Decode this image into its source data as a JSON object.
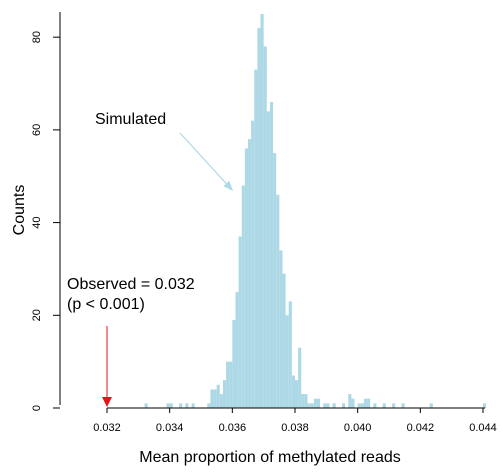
{
  "chart_data": {
    "type": "bar",
    "title": "",
    "xlabel": "Mean proportion of methylated reads",
    "ylabel": "Counts",
    "xlim": [
      0.03075,
      0.0445
    ],
    "ylim": [
      0,
      85
    ],
    "x_ticks": [
      0.032,
      0.034,
      0.036,
      0.038,
      0.04,
      0.042,
      0.044
    ],
    "x_tick_labels": [
      "0.032",
      "0.034",
      "0.036",
      "0.038",
      "0.040",
      "0.042",
      "0.044"
    ],
    "y_ticks": [
      0,
      20,
      40,
      60,
      80
    ],
    "y_tick_labels": [
      "0",
      "20",
      "40",
      "60",
      "80"
    ],
    "bar_color": "#add8e6",
    "bin_width": 0.0001,
    "series": [
      {
        "bins": [
          [
            0.0332,
            1
          ],
          [
            0.0339,
            1
          ],
          [
            0.034,
            1
          ],
          [
            0.0343,
            1
          ],
          [
            0.0345,
            1
          ],
          [
            0.0347,
            1
          ],
          [
            0.0352,
            1
          ],
          [
            0.0353,
            4
          ],
          [
            0.0354,
            4
          ],
          [
            0.0355,
            5
          ],
          [
            0.0356,
            3
          ],
          [
            0.0357,
            6
          ],
          [
            0.0358,
            10
          ],
          [
            0.0359,
            10
          ],
          [
            0.036,
            19
          ],
          [
            0.0361,
            25
          ],
          [
            0.0362,
            37
          ],
          [
            0.0363,
            48
          ],
          [
            0.0364,
            56
          ],
          [
            0.0365,
            58
          ],
          [
            0.0366,
            62
          ],
          [
            0.0367,
            73
          ],
          [
            0.0368,
            82
          ],
          [
            0.0369,
            85
          ],
          [
            0.037,
            78
          ],
          [
            0.0371,
            64
          ],
          [
            0.0372,
            66
          ],
          [
            0.0373,
            55
          ],
          [
            0.0374,
            46
          ],
          [
            0.0375,
            34
          ],
          [
            0.0376,
            29
          ],
          [
            0.0377,
            20
          ],
          [
            0.0378,
            23
          ],
          [
            0.0379,
            7
          ],
          [
            0.038,
            6
          ],
          [
            0.0381,
            13
          ],
          [
            0.0382,
            3
          ],
          [
            0.0383,
            3
          ],
          [
            0.0384,
            1
          ],
          [
            0.0385,
            1
          ],
          [
            0.0386,
            2
          ],
          [
            0.0387,
            2
          ],
          [
            0.0389,
            1
          ],
          [
            0.039,
            1
          ],
          [
            0.0392,
            1
          ],
          [
            0.0395,
            1
          ],
          [
            0.0397,
            3
          ],
          [
            0.0398,
            2
          ],
          [
            0.04,
            1
          ],
          [
            0.0401,
            1
          ],
          [
            0.0402,
            2
          ],
          [
            0.0403,
            2
          ],
          [
            0.0405,
            1
          ],
          [
            0.0408,
            1
          ],
          [
            0.0411,
            1
          ],
          [
            0.0414,
            1
          ],
          [
            0.0423,
            1
          ],
          [
            0.044,
            1
          ]
        ]
      }
    ],
    "annotations": {
      "simulated": {
        "text": "Simulated",
        "arrow_color": "#add8e6",
        "points_to": [
          0.036,
          47
        ]
      },
      "observed": {
        "line1": "Observed = 0.032",
        "line2": "(p < 0.001)",
        "value": 0.032,
        "arrow_color": "#e8141c"
      }
    }
  }
}
